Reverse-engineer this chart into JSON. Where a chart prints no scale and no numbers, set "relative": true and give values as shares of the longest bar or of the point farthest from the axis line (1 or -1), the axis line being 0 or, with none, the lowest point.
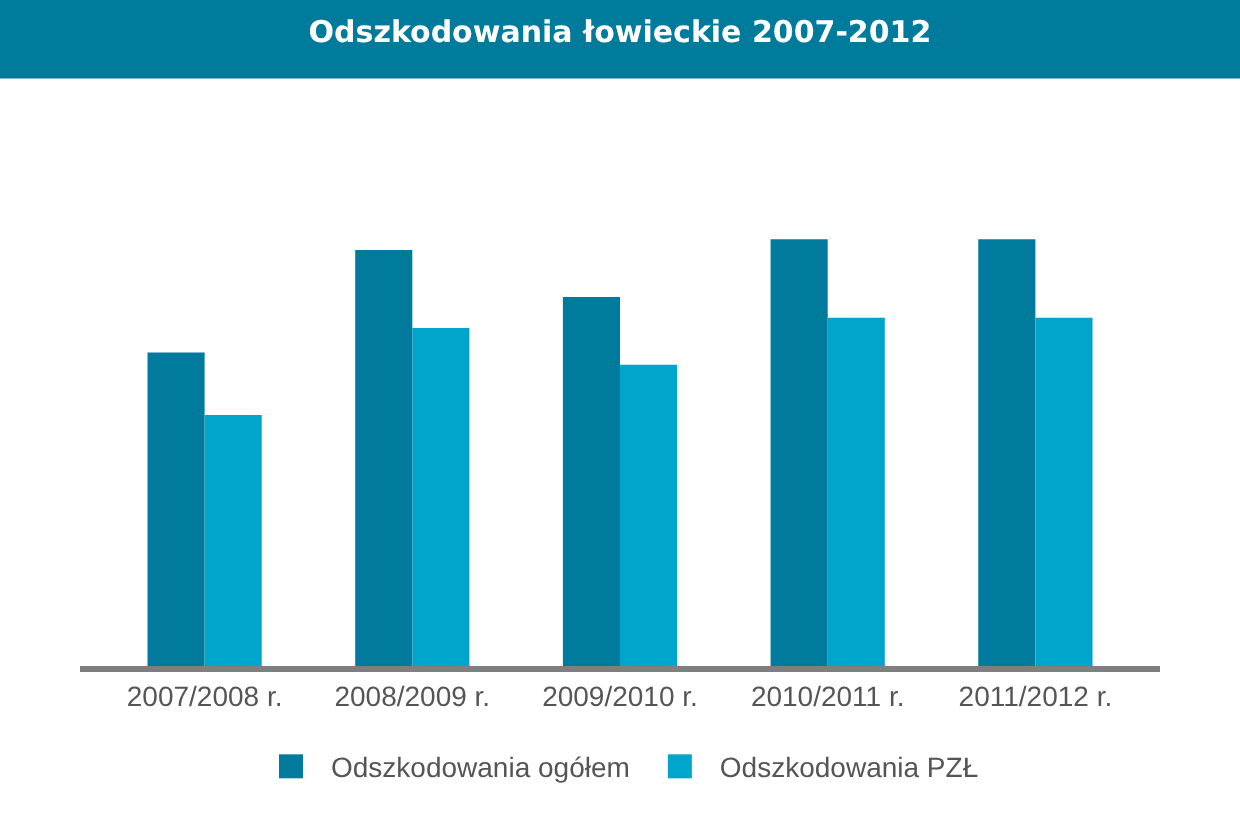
{
  "chart_data": {
    "type": "bar",
    "title": "Odszkodowania łowieckie 2007-2012",
    "relative": true,
    "legend": "bottom",
    "categories": [
      "2007/2008 r.",
      "2008/2009 r.",
      "2009/2010 r.",
      "2010/2011 r.",
      "2011/2012 r."
    ],
    "series": [
      {
        "name": "Odszkodowania ogółem",
        "color": "#017b9c",
        "values": [
          0.735,
          0.975,
          0.865,
          1,
          1
        ]
      },
      {
        "name": "Odszkodowania PZŁ",
        "color": "#00a5cb",
        "values": [
          0.588,
          0.792,
          0.706,
          0.816,
          0.816
        ]
      }
    ]
  }
}
